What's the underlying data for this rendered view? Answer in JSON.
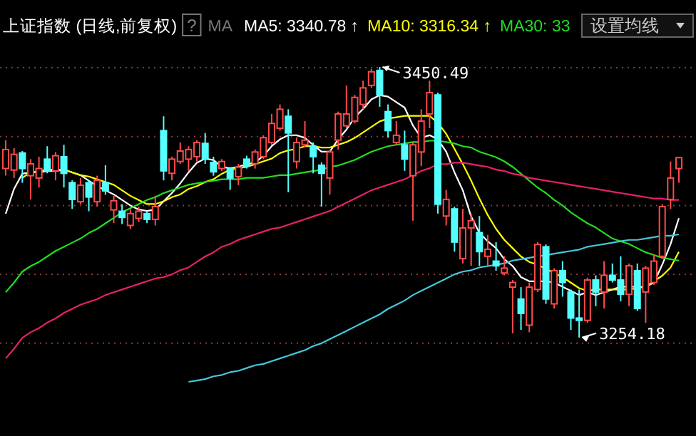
{
  "chart_data": {
    "type": "candlestick",
    "title": "上证指数 (日线,前复权)",
    "categories": [
      null,
      null,
      null,
      null,
      null,
      null,
      null,
      null,
      null,
      null,
      null,
      null,
      null,
      null,
      null,
      null,
      null,
      null,
      null,
      null,
      null,
      null,
      null,
      null,
      null,
      null,
      null,
      null,
      null,
      null,
      null,
      null,
      null,
      null,
      null,
      null,
      null,
      null,
      null,
      null,
      null,
      null,
      null,
      null,
      null,
      null,
      null,
      null,
      null,
      null,
      null,
      null,
      null,
      null,
      null,
      null,
      null,
      null,
      null,
      null,
      null,
      null,
      null,
      null,
      null,
      null,
      null,
      null,
      null,
      null,
      null,
      null,
      null,
      null,
      null,
      null,
      null,
      null,
      null,
      null,
      null,
      null
    ],
    "ohlc": [
      [
        3376.8,
        3397.4,
        3371.6,
        3390.6
      ],
      [
        3375.7,
        3391.6,
        3369.9,
        3387.1
      ],
      [
        3388.1,
        3389.5,
        3366.5,
        3376.8
      ],
      [
        3371.6,
        3383.6,
        3354.4,
        3380.2
      ],
      [
        3369.9,
        3385.4,
        3363.0,
        3376.8
      ],
      [
        3383.6,
        3393.0,
        3373.3,
        3375.1
      ],
      [
        3375.1,
        3388.8,
        3368.2,
        3386.1
      ],
      [
        3385.4,
        3394.0,
        3363.0,
        3373.3
      ],
      [
        3366.5,
        3368.2,
        3347.5,
        3354.4
      ],
      [
        3352.7,
        3369.9,
        3350.9,
        3364.7
      ],
      [
        3366.5,
        3368.2,
        3345.8,
        3356.1
      ],
      [
        3352.7,
        3371.6,
        3349.2,
        3368.2
      ],
      [
        3366.5,
        3379.2,
        3357.8,
        3360.6
      ],
      [
        3346.8,
        3357.1,
        3337.2,
        3353.4
      ],
      [
        3345.8,
        3350.9,
        3336.5,
        3341.3
      ],
      [
        3335.5,
        3347.5,
        3333.0,
        3344.1
      ],
      [
        3340.6,
        3349.2,
        3337.9,
        3345.8
      ],
      [
        3344.1,
        3345.8,
        3337.2,
        3339.9
      ],
      [
        3339.9,
        3357.1,
        3335.5,
        3349.2
      ],
      [
        3404.3,
        3414.7,
        3368.2,
        3375.1
      ],
      [
        3373.3,
        3385.4,
        3368.2,
        3383.6
      ],
      [
        3381.9,
        3395.7,
        3380.2,
        3389.5
      ],
      [
        3383.6,
        3393.0,
        3375.1,
        3390.6
      ],
      [
        3385.4,
        3397.4,
        3381.9,
        3395.7
      ],
      [
        3395.0,
        3402.6,
        3380.2,
        3383.6
      ],
      [
        3381.2,
        3385.4,
        3371.6,
        3374.4
      ],
      [
        3376.8,
        3383.6,
        3375.1,
        3381.9
      ],
      [
        3376.8,
        3377.8,
        3361.3,
        3369.9
      ],
      [
        3370.9,
        3380.2,
        3364.7,
        3377.8
      ],
      [
        3383.6,
        3386.1,
        3376.8,
        3378.5
      ],
      [
        3380.2,
        3390.6,
        3376.8,
        3388.8
      ],
      [
        3385.4,
        3400.9,
        3383.6,
        3399.2
      ],
      [
        3395.7,
        3416.4,
        3394.0,
        3409.5
      ],
      [
        3406.0,
        3423.3,
        3404.3,
        3419.8
      ],
      [
        3414.7,
        3419.8,
        3359.6,
        3402.6
      ],
      [
        3381.9,
        3399.2,
        3376.8,
        3395.7
      ],
      [
        3394.0,
        3411.2,
        3392.3,
        3397.4
      ],
      [
        3393.0,
        3395.7,
        3373.3,
        3385.4
      ],
      [
        3379.2,
        3381.2,
        3349.2,
        3373.3
      ],
      [
        3369.9,
        3390.6,
        3357.8,
        3388.8
      ],
      [
        3397.4,
        3418.1,
        3390.6,
        3416.4
      ],
      [
        3407.8,
        3437.1,
        3406.0,
        3416.4
      ],
      [
        3411.2,
        3430.2,
        3409.5,
        3428.4
      ],
      [
        3423.3,
        3440.5,
        3419.8,
        3435.3
      ],
      [
        3437.1,
        3449.1,
        3435.3,
        3447.0
      ],
      [
        3448.0,
        3450.49,
        3421.6,
        3430.2
      ],
      [
        3418.1,
        3423.3,
        3399.2,
        3404.3
      ],
      [
        3395.7,
        3411.2,
        3394.0,
        3400.9
      ],
      [
        3394.0,
        3404.3,
        3375.1,
        3383.6
      ],
      [
        3371.6,
        3395.7,
        3338.9,
        3394.0
      ],
      [
        3388.8,
        3419.8,
        3378.5,
        3411.2
      ],
      [
        3416.4,
        3440.5,
        3406.0,
        3431.9
      ],
      [
        3430.2,
        3431.9,
        3344.1,
        3350.9
      ],
      [
        3342.3,
        3361.3,
        3335.5,
        3354.4
      ],
      [
        3347.5,
        3349.2,
        3316.5,
        3323.4
      ],
      [
        3311.4,
        3347.5,
        3307.9,
        3333.7
      ],
      [
        3333.7,
        3344.1,
        3306.2,
        3338.9
      ],
      [
        3330.3,
        3342.3,
        3306.2,
        3316.5
      ],
      [
        3313.1,
        3328.6,
        3306.2,
        3318.2
      ],
      [
        3309.6,
        3323.4,
        3302.7,
        3306.2
      ],
      [
        3301.0,
        3313.1,
        3299.3,
        3304.5
      ],
      [
        3290.7,
        3295.9,
        3257.3,
        3294.1
      ],
      [
        3282.1,
        3290.7,
        3259.7,
        3271.7
      ],
      [
        3263.1,
        3294.1,
        3258.0,
        3290.7
      ],
      [
        3289.0,
        3323.4,
        3287.2,
        3321.7
      ],
      [
        3320.0,
        3321.7,
        3278.6,
        3282.1
      ],
      [
        3278.6,
        3304.5,
        3275.2,
        3302.7
      ],
      [
        3302.7,
        3309.6,
        3283.8,
        3294.1
      ],
      [
        3287.2,
        3289.0,
        3259.7,
        3268.3
      ],
      [
        3268.3,
        3289.0,
        3254.18,
        3266.6
      ],
      [
        3266.6,
        3297.6,
        3264.9,
        3295.9
      ],
      [
        3295.9,
        3299.3,
        3276.9,
        3287.2
      ],
      [
        3287.2,
        3309.6,
        3275.2,
        3299.3
      ],
      [
        3299.3,
        3307.9,
        3294.1,
        3295.9
      ],
      [
        3295.9,
        3313.1,
        3280.4,
        3285.5
      ],
      [
        3285.5,
        3307.9,
        3276.9,
        3306.2
      ],
      [
        3302.7,
        3307.9,
        3273.5,
        3275.2
      ],
      [
        3287.2,
        3306.2,
        3264.9,
        3304.5
      ],
      [
        3294.1,
        3314.8,
        3292.4,
        3309.6
      ],
      [
        3313.1,
        3350.9,
        3311.4,
        3349.2
      ],
      [
        3354.4,
        3381.9,
        3347.5,
        3369.9
      ],
      [
        3376.8,
        3385.4,
        3366.5,
        3384.7
      ]
    ],
    "series": [
      {
        "name": "MA5: 3340.78 ↑",
        "color": "#ffffff",
        "type": "line",
        "values": [
          3344,
          3362,
          3373,
          3374,
          3374,
          3375,
          3375,
          3376,
          3374,
          3372,
          3368,
          3364,
          3361,
          3358,
          3354,
          3350,
          3347,
          3346,
          3347,
          3353,
          3359,
          3366,
          3374,
          3381,
          3384,
          3383,
          3378,
          3377,
          3378,
          3380,
          3381,
          3386,
          3393,
          3398,
          3401,
          3401,
          3399,
          3394,
          3389,
          3389,
          3398,
          3405,
          3414,
          3420,
          3427,
          3430,
          3429,
          3425,
          3421,
          3408,
          3399,
          3401,
          3398,
          3389,
          3374,
          3361,
          3342,
          3330,
          3324,
          3319,
          3311,
          3306,
          3298,
          3295,
          3295,
          3295,
          3294,
          3291,
          3288,
          3285,
          3287,
          3285,
          3287,
          3289,
          3291,
          3291,
          3291,
          3291,
          3294,
          3307,
          3322,
          3340.78
        ]
      },
      {
        "name": "MA10: 3316.34 ↑",
        "color": "#ffff00",
        "type": "line",
        "values": [
          null,
          null,
          3370,
          3374,
          3375,
          3376,
          3376,
          3376,
          3374,
          3372,
          3371,
          3369,
          3367,
          3365,
          3361,
          3357,
          3354,
          3351,
          3351,
          3353,
          3356,
          3358,
          3362,
          3364,
          3367,
          3369,
          3373,
          3376,
          3377,
          3378,
          3380,
          3382,
          3384,
          3388,
          3390,
          3391,
          3393,
          3393,
          3392,
          3392,
          3394,
          3396,
          3399,
          3403,
          3407,
          3411,
          3413,
          3414,
          3415,
          3415,
          3415,
          3415,
          3410,
          3402,
          3391,
          3380,
          3368,
          3355,
          3343,
          3333,
          3325,
          3319,
          3313,
          3309,
          3307,
          3304,
          3301,
          3298,
          3294,
          3290,
          3288,
          3289,
          3289,
          3289,
          3289,
          3289,
          3290,
          3291,
          3295,
          3299,
          3305,
          3316.34
        ]
      },
      {
        "name": "MA30: 33",
        "color": "#22dd22",
        "type": "line",
        "values": [
          3287,
          3294,
          3302,
          3306,
          3309,
          3313,
          3317,
          3320,
          3323,
          3326,
          3330,
          3333,
          3337,
          3341,
          3345,
          3348,
          3351,
          3354,
          3356,
          3359,
          3361,
          3363,
          3365,
          3366,
          3367,
          3368,
          3369,
          3369,
          3369,
          3370,
          3370,
          3370,
          3371,
          3372,
          3372,
          3373,
          3374,
          3375,
          3376,
          3378,
          3379,
          3381,
          3383,
          3386,
          3389,
          3391,
          3393,
          3394,
          3395,
          3396,
          3396,
          3397,
          3397,
          3396,
          3395,
          3393,
          3392,
          3389,
          3387,
          3385,
          3382,
          3378,
          3373,
          3368,
          3363,
          3359,
          3354,
          3350,
          3345,
          3341,
          3337,
          3334,
          3330,
          3326,
          3324,
          3322,
          3319,
          3316,
          3314,
          3312,
          3311,
          3310
        ]
      },
      {
        "color": "#e8206c",
        "type": "line",
        "values": [
          3239,
          3246,
          3254,
          3258,
          3261,
          3265,
          3268,
          3272,
          3275,
          3278,
          3280,
          3282,
          3285,
          3287,
          3289,
          3291,
          3293,
          3295,
          3297,
          3298,
          3300,
          3303,
          3305,
          3309,
          3313,
          3316,
          3320,
          3322,
          3325,
          3327,
          3329,
          3331,
          3333,
          3334,
          3336,
          3338,
          3340,
          3342,
          3344,
          3346,
          3349,
          3352,
          3355,
          3358,
          3361,
          3363,
          3365,
          3367,
          3369,
          3372,
          3375,
          3377,
          3380,
          3380,
          3381,
          3381,
          3380,
          3379,
          3378,
          3376,
          3375,
          3373,
          3372,
          3370,
          3369,
          3368,
          3367,
          3366,
          3365,
          3364,
          3363,
          3362,
          3361,
          3360,
          3359,
          3358,
          3357,
          3356,
          3355,
          3355,
          3354,
          3354
        ]
      },
      {
        "color": "#44c8dc",
        "type": "line",
        "values": [
          null,
          null,
          null,
          null,
          null,
          null,
          null,
          null,
          null,
          null,
          null,
          null,
          null,
          null,
          null,
          null,
          null,
          null,
          null,
          null,
          null,
          null,
          3222,
          3223,
          3224,
          3226,
          3227,
          3229,
          3230,
          3232,
          3234,
          3235,
          3237,
          3239,
          3241,
          3243,
          3245,
          3248,
          3250,
          3253,
          3256,
          3259,
          3262,
          3265,
          3268,
          3271,
          3275,
          3278,
          3281,
          3285,
          3288,
          3291,
          3294,
          3297,
          3300,
          3302,
          3303,
          3305,
          3306,
          3307,
          3308,
          3310,
          3311,
          3312,
          3313,
          3314,
          3315,
          3316,
          3317,
          3318,
          3320,
          3321,
          3322,
          3323,
          3324,
          3325,
          3325,
          3326,
          3327,
          3328,
          3328,
          3329
        ]
      }
    ],
    "yticks": [
      {
        "value": 3450,
        "label": null
      },
      {
        "value": 3400,
        "label": null
      },
      {
        "value": 3350,
        "label": null
      },
      {
        "value": 3300,
        "label": null
      },
      {
        "value": 3250,
        "label": null
      }
    ],
    "grid": "y",
    "legend": "top",
    "tick_labels": false,
    "annotations": [
      "?",
      "MA",
      "设置均线",
      "3450.49",
      "3254.18"
    ]
  }
}
